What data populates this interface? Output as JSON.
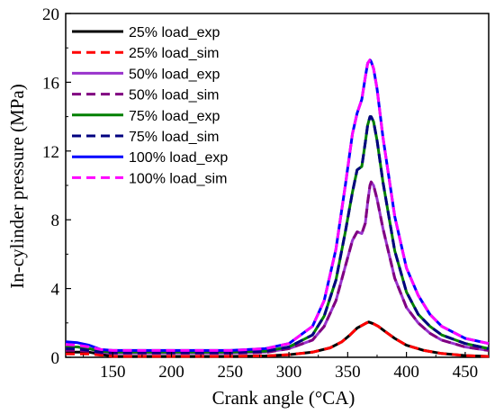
{
  "chart_data": {
    "type": "line",
    "xlabel": "Crank angle (°CA)",
    "ylabel": "In-cylinder pressure (MPa)",
    "xlim": [
      110,
      470
    ],
    "ylim": [
      0,
      20
    ],
    "xticks": [
      150,
      200,
      250,
      300,
      350,
      400,
      450
    ],
    "yticks": [
      0,
      4,
      8,
      12,
      16,
      20
    ],
    "legend_position": "top-left",
    "grid": false,
    "series": [
      {
        "name": "25% load_exp",
        "color": "#000000",
        "dash": "solid",
        "x": [
          110,
          130,
          150,
          200,
          250,
          280,
          300,
          320,
          335,
          345,
          352,
          358,
          362,
          366,
          368,
          370,
          372,
          376,
          382,
          390,
          400,
          415,
          430,
          450,
          470
        ],
        "y": [
          0.3,
          0.3,
          0.05,
          0.05,
          0.05,
          0.08,
          0.15,
          0.3,
          0.55,
          0.9,
          1.3,
          1.7,
          1.85,
          2.0,
          2.05,
          2.0,
          1.95,
          1.8,
          1.5,
          1.1,
          0.7,
          0.4,
          0.22,
          0.1,
          0.05
        ]
      },
      {
        "name": "25% load_sim",
        "color": "#ff0000",
        "dash": "dashed",
        "x": [
          110,
          130,
          150,
          200,
          250,
          280,
          300,
          320,
          335,
          345,
          352,
          358,
          362,
          366,
          368,
          370,
          372,
          376,
          382,
          390,
          400,
          415,
          430,
          450,
          470
        ],
        "y": [
          0.2,
          0.2,
          0.05,
          0.05,
          0.05,
          0.08,
          0.15,
          0.3,
          0.55,
          0.9,
          1.3,
          1.7,
          1.85,
          2.0,
          2.05,
          2.0,
          1.95,
          1.8,
          1.5,
          1.1,
          0.7,
          0.4,
          0.22,
          0.1,
          0.05
        ]
      },
      {
        "name": "50% load_exp",
        "color": "#9933cc",
        "dash": "solid",
        "x": [
          110,
          120,
          130,
          140,
          150,
          200,
          250,
          280,
          300,
          320,
          330,
          340,
          348,
          354,
          358,
          362,
          365,
          367,
          369,
          370,
          372,
          375,
          380,
          390,
          400,
          410,
          420,
          430,
          450,
          470
        ],
        "y": [
          0.6,
          0.6,
          0.5,
          0.3,
          0.25,
          0.25,
          0.25,
          0.3,
          0.5,
          1.0,
          1.8,
          3.3,
          5.3,
          6.8,
          7.3,
          7.2,
          7.8,
          9.0,
          10.0,
          10.2,
          10.0,
          9.2,
          7.5,
          4.6,
          2.9,
          2.0,
          1.4,
          1.0,
          0.6,
          0.4
        ]
      },
      {
        "name": "50% load_sim",
        "color": "#800080",
        "dash": "dashed",
        "x": [
          110,
          120,
          130,
          140,
          150,
          200,
          250,
          280,
          300,
          320,
          330,
          340,
          348,
          354,
          358,
          362,
          365,
          367,
          369,
          370,
          372,
          375,
          380,
          390,
          400,
          410,
          420,
          430,
          450,
          470
        ],
        "y": [
          0.4,
          0.4,
          0.35,
          0.25,
          0.22,
          0.22,
          0.22,
          0.28,
          0.5,
          1.0,
          1.8,
          3.3,
          5.3,
          6.8,
          7.3,
          7.2,
          7.8,
          9.0,
          10.0,
          10.2,
          10.0,
          9.2,
          7.5,
          4.6,
          2.9,
          2.0,
          1.4,
          1.0,
          0.6,
          0.4
        ]
      },
      {
        "name": "75% load_exp",
        "color": "#008000",
        "dash": "solid",
        "x": [
          110,
          120,
          130,
          140,
          150,
          200,
          250,
          280,
          300,
          320,
          330,
          340,
          348,
          354,
          358,
          362,
          365,
          367,
          369,
          370,
          372,
          375,
          380,
          390,
          400,
          410,
          420,
          430,
          450,
          470
        ],
        "y": [
          0.6,
          0.6,
          0.5,
          0.35,
          0.3,
          0.3,
          0.3,
          0.35,
          0.6,
          1.3,
          2.4,
          4.5,
          7.3,
          9.6,
          10.9,
          11.1,
          12.5,
          13.5,
          14.0,
          14.0,
          13.7,
          12.6,
          10.2,
          6.2,
          3.8,
          2.5,
          1.8,
          1.3,
          0.8,
          0.5
        ]
      },
      {
        "name": "75% load_sim",
        "color": "#000080",
        "dash": "dashed",
        "x": [
          110,
          120,
          130,
          140,
          150,
          200,
          250,
          280,
          300,
          320,
          330,
          340,
          348,
          354,
          358,
          362,
          365,
          367,
          369,
          370,
          372,
          375,
          380,
          390,
          400,
          410,
          420,
          430,
          450,
          470
        ],
        "y": [
          0.5,
          0.5,
          0.4,
          0.3,
          0.28,
          0.28,
          0.28,
          0.35,
          0.6,
          1.3,
          2.4,
          4.5,
          7.3,
          9.6,
          10.9,
          11.1,
          12.5,
          13.5,
          14.0,
          14.0,
          13.7,
          12.6,
          10.2,
          6.2,
          3.8,
          2.5,
          1.8,
          1.3,
          0.8,
          0.5
        ]
      },
      {
        "name": "100% load_exp",
        "color": "#0000ff",
        "dash": "solid",
        "x": [
          110,
          120,
          130,
          140,
          150,
          200,
          250,
          280,
          300,
          320,
          330,
          340,
          348,
          354,
          358,
          362,
          365,
          367,
          369,
          370,
          372,
          375,
          380,
          390,
          400,
          410,
          420,
          430,
          450,
          470
        ],
        "y": [
          0.9,
          0.85,
          0.7,
          0.45,
          0.4,
          0.4,
          0.4,
          0.5,
          0.8,
          1.8,
          3.3,
          6.3,
          10.0,
          13.0,
          14.2,
          15.0,
          16.3,
          17.1,
          17.3,
          17.2,
          16.8,
          15.6,
          12.8,
          8.2,
          5.2,
          3.6,
          2.5,
          1.8,
          1.1,
          0.8
        ]
      },
      {
        "name": "100% load_sim",
        "color": "#ff00ff",
        "dash": "dashed",
        "x": [
          110,
          120,
          130,
          140,
          150,
          200,
          250,
          280,
          300,
          320,
          330,
          340,
          348,
          354,
          358,
          362,
          365,
          367,
          369,
          370,
          372,
          375,
          380,
          390,
          400,
          410,
          420,
          430,
          450,
          470
        ],
        "y": [
          0.75,
          0.7,
          0.6,
          0.45,
          0.4,
          0.4,
          0.4,
          0.5,
          0.8,
          1.8,
          3.3,
          6.3,
          10.0,
          13.0,
          14.2,
          15.0,
          16.3,
          17.1,
          17.3,
          17.2,
          16.8,
          15.6,
          12.8,
          8.2,
          5.2,
          3.6,
          2.5,
          1.8,
          1.1,
          0.8
        ]
      }
    ]
  }
}
